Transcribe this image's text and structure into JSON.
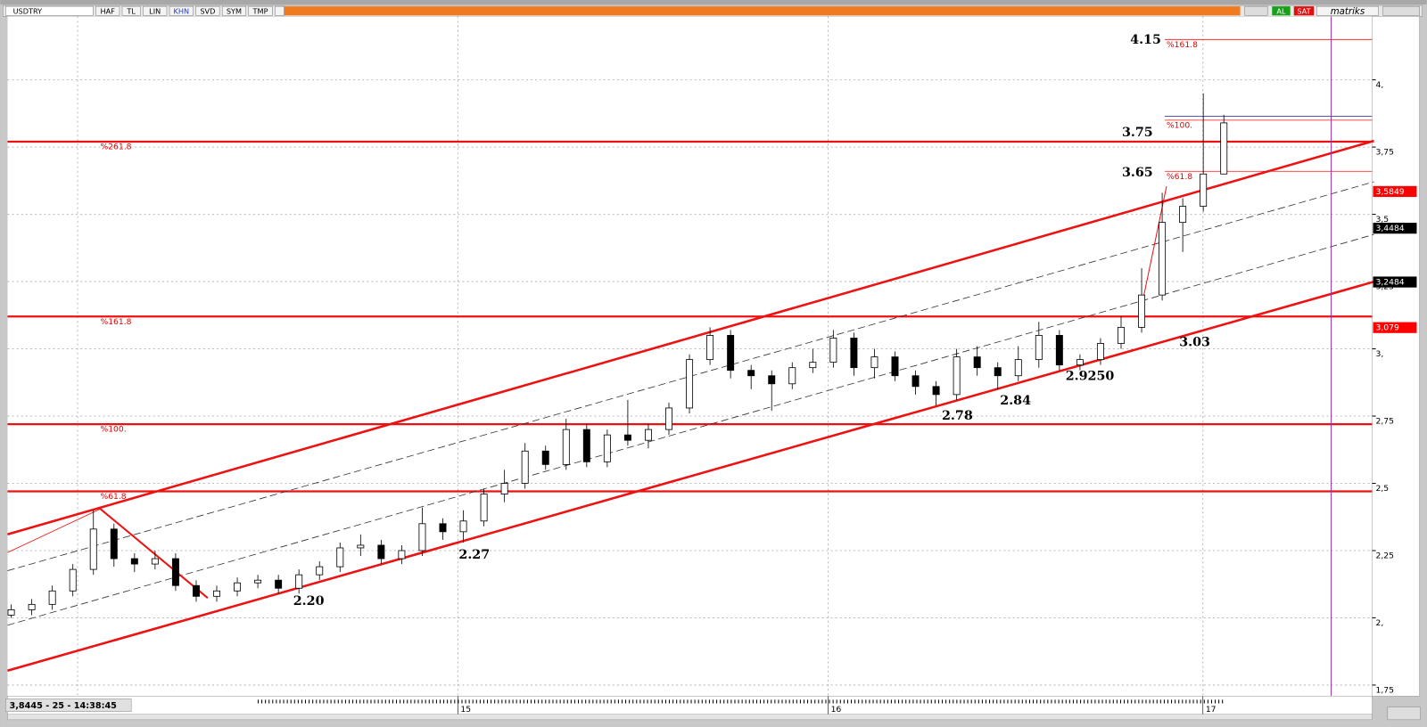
{
  "toolbar": {
    "symbol": "USDTRY",
    "buttons": [
      "HAF",
      "TL",
      "LIN",
      "KHN",
      "SVD",
      "SYM",
      "TMP"
    ],
    "right_buttons": [
      "AL",
      "SAT"
    ],
    "brand": "matriks"
  },
  "chart": {
    "ylim": [
      1.709,
      4.236
    ],
    "yticks": [
      {
        "value": 4,
        "label": "4,"
      },
      {
        "value": 3.75,
        "label": "3,75"
      },
      {
        "value": 3.5,
        "label": "3,5"
      },
      {
        "value": 3.25,
        "label": "3,25"
      },
      {
        "value": 3,
        "label": "3,"
      },
      {
        "value": 2.75,
        "label": "2,75"
      },
      {
        "value": 2.5,
        "label": "2,5"
      },
      {
        "value": 2.25,
        "label": "2,25"
      },
      {
        "value": 2,
        "label": "2,"
      },
      {
        "value": 1.75,
        "label": "1,75"
      }
    ],
    "x_labels": [
      "15",
      "16",
      "17"
    ],
    "candles": {
      "open": [
        2.01,
        2.03,
        2.05,
        2.1,
        2.18,
        2.33,
        2.22,
        2.2,
        2.22,
        2.12,
        2.08,
        2.1,
        2.13,
        2.14,
        2.11,
        2.16,
        2.19,
        2.26,
        2.27,
        2.22,
        2.25,
        2.35,
        2.32,
        2.36,
        2.46,
        2.5,
        2.62,
        2.57,
        2.7,
        2.58,
        2.68,
        2.66,
        2.7,
        2.78,
        2.96,
        3.05,
        2.92,
        2.9,
        2.87,
        2.93,
        2.95,
        3.04,
        2.93,
        2.97,
        2.9,
        2.86,
        2.83,
        2.97,
        2.93,
        2.9,
        2.96,
        3.05,
        2.94,
        2.96,
        3.02,
        3.08,
        3.2,
        3.47,
        3.53,
        3.65
      ],
      "high": [
        2.05,
        2.07,
        2.12,
        2.2,
        2.4,
        2.35,
        2.24,
        2.25,
        2.24,
        2.14,
        2.12,
        2.15,
        2.16,
        2.16,
        2.18,
        2.21,
        2.28,
        2.31,
        2.29,
        2.27,
        2.41,
        2.37,
        2.4,
        2.48,
        2.55,
        2.65,
        2.64,
        2.74,
        2.72,
        2.7,
        2.81,
        2.72,
        2.8,
        2.98,
        3.08,
        3.07,
        2.94,
        2.92,
        2.95,
        3.0,
        3.07,
        3.06,
        3.0,
        2.99,
        2.92,
        2.88,
        3.0,
        3.01,
        2.95,
        3.01,
        3.1,
        3.07,
        2.98,
        3.04,
        3.12,
        3.3,
        3.58,
        3.56,
        3.95,
        3.87
      ],
      "low": [
        2.0,
        2.01,
        2.03,
        2.08,
        2.16,
        2.19,
        2.17,
        2.18,
        2.1,
        2.06,
        2.06,
        2.08,
        2.11,
        2.09,
        2.09,
        2.14,
        2.17,
        2.23,
        2.2,
        2.2,
        2.23,
        2.29,
        2.28,
        2.34,
        2.43,
        2.48,
        2.55,
        2.55,
        2.56,
        2.56,
        2.64,
        2.63,
        2.68,
        2.76,
        2.94,
        2.89,
        2.85,
        2.77,
        2.85,
        2.91,
        2.93,
        2.9,
        2.89,
        2.88,
        2.83,
        2.79,
        2.81,
        2.9,
        2.85,
        2.88,
        2.93,
        2.92,
        2.92,
        2.94,
        3.0,
        3.06,
        3.18,
        3.36,
        3.51,
        3.74
      ],
      "close": [
        2.03,
        2.05,
        2.1,
        2.18,
        2.33,
        2.22,
        2.2,
        2.22,
        2.12,
        2.08,
        2.1,
        2.13,
        2.14,
        2.11,
        2.16,
        2.19,
        2.26,
        2.27,
        2.22,
        2.25,
        2.35,
        2.32,
        2.36,
        2.46,
        2.5,
        2.62,
        2.57,
        2.7,
        2.58,
        2.68,
        2.66,
        2.7,
        2.78,
        2.96,
        3.05,
        2.92,
        2.9,
        2.87,
        2.93,
        2.95,
        3.04,
        2.93,
        2.97,
        2.9,
        2.86,
        2.83,
        2.97,
        2.93,
        2.9,
        2.96,
        3.05,
        2.94,
        2.96,
        3.02,
        3.08,
        3.2,
        3.47,
        3.53,
        3.65,
        3.84
      ]
    },
    "fib_left": [
      {
        "label": "%261.8",
        "price": 3.77
      },
      {
        "label": "%161.8",
        "price": 3.12
      },
      {
        "label": "%100.",
        "price": 2.72
      },
      {
        "label": "%61.8",
        "price": 2.47
      }
    ],
    "fib_right": [
      {
        "label": "%161.8",
        "price": 4.15
      },
      {
        "label": "%100.",
        "price": 3.85
      },
      {
        "label": "%61.8",
        "price": 3.66
      }
    ],
    "price_tags": [
      {
        "value": 3.5849,
        "label": "3,5849",
        "color": "#ff0000"
      },
      {
        "value": 3.4484,
        "label": "3,4484",
        "color": "#000000"
      },
      {
        "value": 3.2484,
        "label": "3,2484",
        "color": "#000000"
      },
      {
        "value": 3.079,
        "label": "3,079",
        "color": "#ff0000"
      }
    ],
    "annotations": [
      "4.15",
      "3.75",
      "3.65",
      "3.03",
      "2.9250",
      "2.84",
      "2.78",
      "2.27",
      "2.20"
    ],
    "status": "3,8445 - 25 - 14:38:45"
  }
}
